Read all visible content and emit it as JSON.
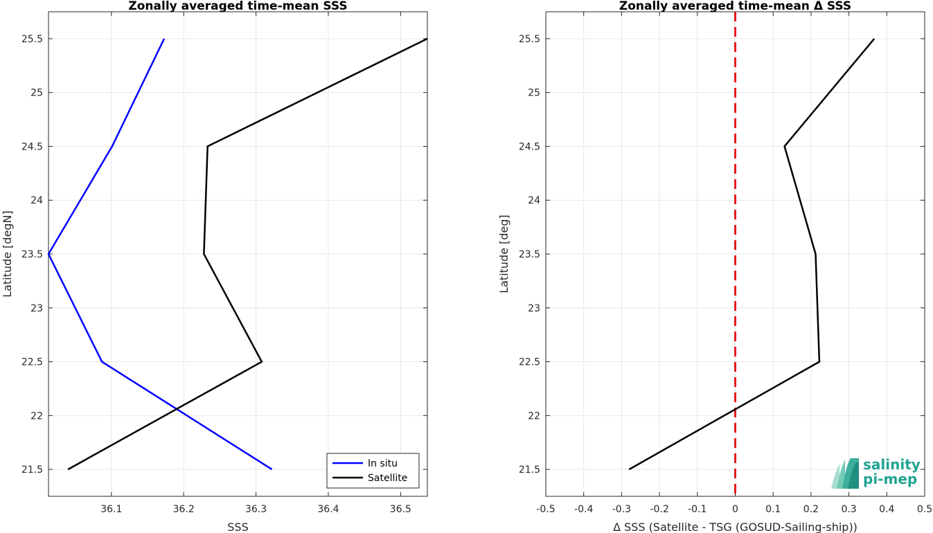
{
  "chart_data": [
    {
      "type": "line",
      "title": "Zonally averaged time-mean SSS",
      "xlabel": "SSS",
      "ylabel": "Latitude [degN]",
      "xlim": [
        36.013,
        36.537
      ],
      "ylim": [
        21.25,
        25.75
      ],
      "xticks": [
        "36.1",
        "36.2",
        "36.3",
        "36.4",
        "36.5"
      ],
      "yticks": [
        "21.5",
        "22",
        "22.5",
        "23",
        "23.5",
        "24",
        "24.5",
        "25",
        "25.5"
      ],
      "grid": true,
      "legend": "bottom-right",
      "series": [
        {
          "name": "In situ",
          "color": "#0000ff",
          "points": [
            [
              36.322,
              21.5
            ],
            [
              36.087,
              22.5
            ],
            [
              36.013,
              23.5
            ],
            [
              36.101,
              24.5
            ],
            [
              36.173,
              25.5
            ]
          ]
        },
        {
          "name": "Satellite",
          "color": "#000000",
          "points": [
            [
              36.04,
              21.5
            ],
            [
              36.308,
              22.5
            ],
            [
              36.228,
              23.5
            ],
            [
              36.233,
              24.5
            ],
            [
              36.537,
              25.5
            ]
          ]
        }
      ]
    },
    {
      "type": "line",
      "title": "Zonally averaged time-mean Δ SSS",
      "xlabel": "Δ SSS (Satellite - TSG (GOSUD-Sailing-ship))",
      "ylabel": "Latitude [deg]",
      "xlim": [
        -0.5,
        0.5
      ],
      "ylim": [
        21.25,
        25.75
      ],
      "xticks": [
        "-0.5",
        "-0.4",
        "-0.3",
        "-0.2",
        "-0.1",
        "0",
        "0.1",
        "0.2",
        "0.3",
        "0.4",
        "0.5"
      ],
      "yticks": [
        "21.5",
        "22",
        "22.5",
        "23",
        "23.5",
        "24",
        "24.5",
        "25",
        "25.5"
      ],
      "grid": true,
      "zero_line": {
        "x": 0,
        "color": "#e41a1c",
        "style": "dashed"
      },
      "series": [
        {
          "color": "#000000",
          "points": [
            [
              -0.28,
              21.5
            ],
            [
              0.222,
              22.5
            ],
            [
              0.212,
              23.5
            ],
            [
              0.13,
              24.5
            ],
            [
              0.367,
              25.5
            ]
          ]
        }
      ]
    }
  ],
  "logo": {
    "line1": "salinity",
    "line2": "pi-mep",
    "color": "#21a392"
  }
}
